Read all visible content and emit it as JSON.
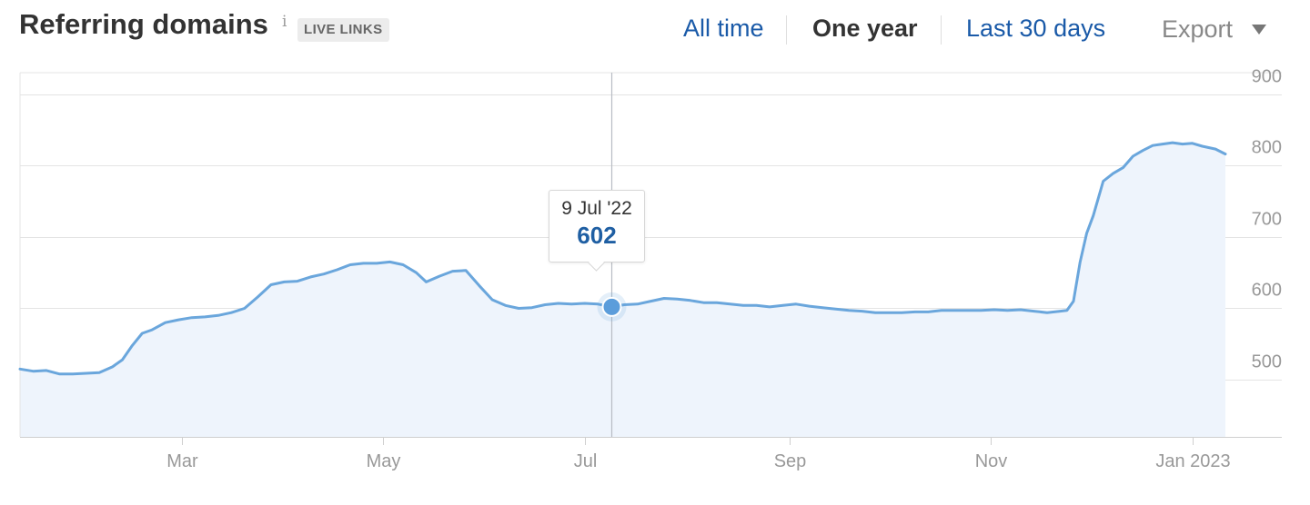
{
  "header": {
    "title": "Referring domains",
    "info_icon": "info-icon",
    "badge": "LIVE LINKS",
    "ranges": [
      "All time",
      "One year",
      "Last 30 days"
    ],
    "active_range": "One year",
    "export_label": "Export",
    "export_icon": "caret-down-icon"
  },
  "tooltip": {
    "date": "9 Jul '22",
    "value": "602"
  },
  "colors": {
    "line": "#6aa6dc",
    "area": "#eef4fc",
    "link": "#1a5aa8",
    "tooltip_value": "#1f5fa3"
  },
  "chart_data": {
    "type": "area",
    "title": "Referring domains",
    "x_start": "2022-01-11",
    "x_end": "2023-01-11",
    "x_ticks": [
      {
        "date": "2022-03-01",
        "label": "Mar"
      },
      {
        "date": "2022-05-01",
        "label": "May"
      },
      {
        "date": "2022-07-01",
        "label": "Jul"
      },
      {
        "date": "2022-09-01",
        "label": "Sep"
      },
      {
        "date": "2022-11-01",
        "label": "Nov"
      },
      {
        "date": "2023-01-01",
        "label": "Jan 2023"
      }
    ],
    "y_ticks": [
      500,
      600,
      700,
      800,
      900
    ],
    "ylim": [
      420,
      930
    ],
    "grid": true,
    "series": [
      {
        "points": [
          [
            "2022-01-11",
            515
          ],
          [
            "2022-01-15",
            512
          ],
          [
            "2022-01-19",
            513
          ],
          [
            "2022-01-23",
            508
          ],
          [
            "2022-01-27",
            508
          ],
          [
            "2022-01-31",
            509
          ],
          [
            "2022-02-04",
            510
          ],
          [
            "2022-02-08",
            518
          ],
          [
            "2022-02-11",
            528
          ],
          [
            "2022-02-14",
            548
          ],
          [
            "2022-02-17",
            565
          ],
          [
            "2022-02-20",
            570
          ],
          [
            "2022-02-24",
            580
          ],
          [
            "2022-02-28",
            584
          ],
          [
            "2022-03-04",
            587
          ],
          [
            "2022-03-08",
            588
          ],
          [
            "2022-03-12",
            590
          ],
          [
            "2022-03-16",
            594
          ],
          [
            "2022-03-20",
            600
          ],
          [
            "2022-03-24",
            616
          ],
          [
            "2022-03-28",
            633
          ],
          [
            "2022-04-01",
            637
          ],
          [
            "2022-04-05",
            638
          ],
          [
            "2022-04-09",
            644
          ],
          [
            "2022-04-13",
            648
          ],
          [
            "2022-04-17",
            654
          ],
          [
            "2022-04-21",
            661
          ],
          [
            "2022-04-25",
            663
          ],
          [
            "2022-04-29",
            663
          ],
          [
            "2022-05-03",
            665
          ],
          [
            "2022-05-07",
            661
          ],
          [
            "2022-05-11",
            650
          ],
          [
            "2022-05-14",
            637
          ],
          [
            "2022-05-18",
            645
          ],
          [
            "2022-05-22",
            652
          ],
          [
            "2022-05-26",
            653
          ],
          [
            "2022-05-30",
            632
          ],
          [
            "2022-06-03",
            612
          ],
          [
            "2022-06-07",
            604
          ],
          [
            "2022-06-11",
            600
          ],
          [
            "2022-06-15",
            601
          ],
          [
            "2022-06-19",
            605
          ],
          [
            "2022-06-23",
            607
          ],
          [
            "2022-06-27",
            606
          ],
          [
            "2022-07-01",
            607
          ],
          [
            "2022-07-05",
            606
          ],
          [
            "2022-07-09",
            602
          ],
          [
            "2022-07-13",
            605
          ],
          [
            "2022-07-17",
            606
          ],
          [
            "2022-07-21",
            610
          ],
          [
            "2022-07-25",
            614
          ],
          [
            "2022-07-29",
            613
          ],
          [
            "2022-08-02",
            611
          ],
          [
            "2022-08-06",
            608
          ],
          [
            "2022-08-10",
            608
          ],
          [
            "2022-08-14",
            606
          ],
          [
            "2022-08-18",
            604
          ],
          [
            "2022-08-22",
            604
          ],
          [
            "2022-08-26",
            602
          ],
          [
            "2022-08-30",
            604
          ],
          [
            "2022-09-03",
            606
          ],
          [
            "2022-09-07",
            603
          ],
          [
            "2022-09-11",
            601
          ],
          [
            "2022-09-15",
            599
          ],
          [
            "2022-09-19",
            597
          ],
          [
            "2022-09-23",
            596
          ],
          [
            "2022-09-27",
            594
          ],
          [
            "2022-10-01",
            594
          ],
          [
            "2022-10-05",
            594
          ],
          [
            "2022-10-09",
            595
          ],
          [
            "2022-10-13",
            595
          ],
          [
            "2022-10-17",
            597
          ],
          [
            "2022-10-21",
            597
          ],
          [
            "2022-10-25",
            597
          ],
          [
            "2022-10-29",
            597
          ],
          [
            "2022-11-02",
            598
          ],
          [
            "2022-11-06",
            597
          ],
          [
            "2022-11-10",
            598
          ],
          [
            "2022-11-14",
            596
          ],
          [
            "2022-11-18",
            594
          ],
          [
            "2022-11-22",
            596
          ],
          [
            "2022-11-24",
            597
          ],
          [
            "2022-11-26",
            610
          ],
          [
            "2022-11-28",
            665
          ],
          [
            "2022-11-30",
            705
          ],
          [
            "2022-12-02",
            730
          ],
          [
            "2022-12-05",
            778
          ],
          [
            "2022-12-08",
            789
          ],
          [
            "2022-12-11",
            797
          ],
          [
            "2022-12-14",
            813
          ],
          [
            "2022-12-17",
            821
          ],
          [
            "2022-12-20",
            828
          ],
          [
            "2022-12-23",
            830
          ],
          [
            "2022-12-26",
            832
          ],
          [
            "2022-12-29",
            830
          ],
          [
            "2023-01-01",
            831
          ],
          [
            "2023-01-04",
            827
          ],
          [
            "2023-01-08",
            823
          ],
          [
            "2023-01-11",
            816
          ]
        ]
      }
    ],
    "highlight": {
      "date": "2022-07-09",
      "value": 602
    }
  }
}
